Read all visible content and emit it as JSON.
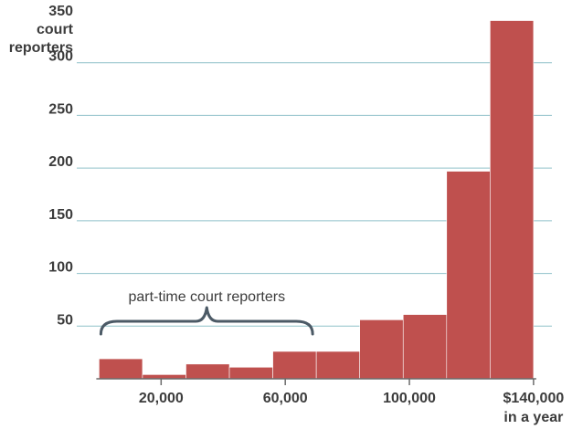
{
  "chart_data": {
    "type": "bar",
    "title": "",
    "ylabel": "court\nreporters",
    "xlabel": "in a year",
    "ylim": [
      0,
      350
    ],
    "xlim": [
      10000,
      150000
    ],
    "yticks": [
      50,
      100,
      150,
      200,
      250,
      300,
      350
    ],
    "xticks": [
      {
        "value": 20000,
        "label": "20,000"
      },
      {
        "value": 60000,
        "label": "60,000"
      },
      {
        "value": 100000,
        "label": "100,000"
      },
      {
        "value": 140000,
        "label": "$140,000"
      }
    ],
    "bins": [
      {
        "start": 0,
        "end": 14000,
        "value": 19
      },
      {
        "start": 14000,
        "end": 28000,
        "value": 4
      },
      {
        "start": 28000,
        "end": 42000,
        "value": 14
      },
      {
        "start": 42000,
        "end": 56000,
        "value": 11
      },
      {
        "start": 56000,
        "end": 70000,
        "value": 26
      },
      {
        "start": 70000,
        "end": 84000,
        "value": 26
      },
      {
        "start": 84000,
        "end": 98000,
        "value": 56
      },
      {
        "start": 98000,
        "end": 112000,
        "value": 61
      },
      {
        "start": 112000,
        "end": 126000,
        "value": 197
      },
      {
        "start": 126000,
        "end": 140000,
        "value": 340
      }
    ],
    "grid": true,
    "colors": {
      "bar": "#bf504e",
      "grid": "#8fc1c9",
      "text": "#3c3c3c",
      "brace": "#4c5a66"
    },
    "annotation": {
      "text": "part-time court reporters",
      "from": 0,
      "to": 70000
    }
  }
}
